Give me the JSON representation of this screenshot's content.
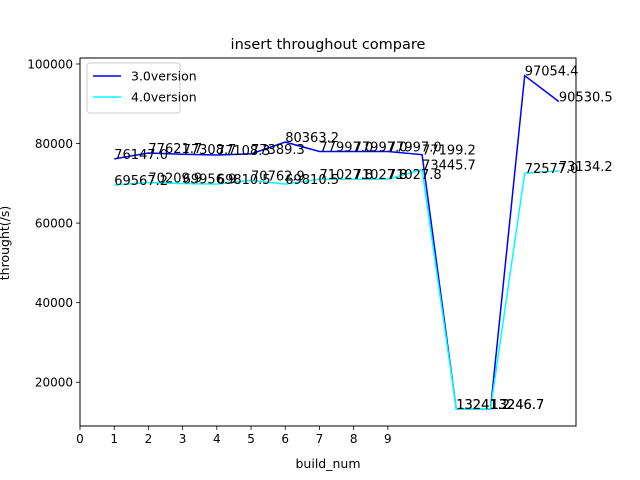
{
  "chart_data": {
    "type": "line",
    "title": "insert throughout compare",
    "xlabel": "build_num",
    "ylabel": "throught(/s)",
    "xlim": [
      0,
      14.5
    ],
    "ylim": [
      9000,
      101500
    ],
    "xticks": [
      "0",
      "1",
      "2",
      "3",
      "4",
      "5",
      "6",
      "7",
      "8",
      "9"
    ],
    "yticks": [
      "20000",
      "40000",
      "60000",
      "80000",
      "100000"
    ],
    "legend_position": "top-left",
    "x": [
      1,
      2,
      3,
      4,
      5,
      6,
      7,
      8,
      9,
      10,
      11,
      12,
      13,
      14
    ],
    "series": [
      {
        "name": "3.0version",
        "color": "#0000ff",
        "values": [
          76147.0,
          77621.7,
          77308.7,
          77108.3,
          77389.3,
          80363.2,
          77997.0,
          77997.0,
          77997.0,
          77199.2,
          13241.2,
          13246.7,
          97054.4,
          90530.5
        ],
        "labels": [
          "76147.0",
          "77621.7",
          "77308.7",
          "77108.3",
          "77389.3",
          "80363.2",
          "77997.0",
          "77997.0",
          "77997.0",
          "77199.2",
          "13241.2",
          "13246.7",
          "97054.4",
          "90530.5"
        ]
      },
      {
        "name": "4.0version",
        "color": "#00ffff",
        "values": [
          69567.2,
          70209.9,
          69956.9,
          69810.5,
          70762.9,
          69810.5,
          71027.8,
          71027.8,
          71027.8,
          73445.7,
          13241.2,
          13246.7,
          72577.0,
          73134.2
        ],
        "labels": [
          "69567.2",
          "70209.9",
          "69956.9",
          "69810.5",
          "70762.9",
          "69810.5",
          "71027.8",
          "71027.8",
          "71027.8",
          "73445.7",
          "13241.2",
          "13246.7",
          "72577.0",
          "73134.2"
        ]
      }
    ],
    "grid": false
  }
}
